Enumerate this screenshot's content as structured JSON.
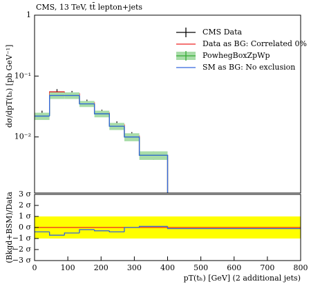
{
  "chart_data": [
    {
      "type": "histogram",
      "title": "CMS, 13 TeV, tt̄ lepton+jets",
      "y_label": "dσ/dpT(tₕ) [pb GeV⁻¹]",
      "bins": [
        0,
        45,
        90,
        135,
        180,
        225,
        270,
        315,
        400,
        800
      ],
      "xlim": [
        0,
        800
      ],
      "ylim": [
        0.0012,
        1
      ],
      "log_y": true,
      "yticks": [
        1,
        {
          "value": 0.1,
          "label": "10⁻¹"
        },
        {
          "value": 0.01,
          "label": "10⁻²"
        }
      ],
      "legend": "upper right",
      "series": [
        {
          "name": "CMS Data",
          "color": "#000000",
          "values": [
            0.024,
            0.055,
            0.052,
            0.037,
            0.025,
            0.016,
            0.0105,
            0.005,
            null
          ],
          "errors": [
            0.003,
            0.006,
            0.005,
            0.004,
            0.003,
            0.002,
            0.0015,
            0.0008,
            null
          ]
        },
        {
          "name": "Data as BG: Correlated 0%",
          "color": "#ee2222",
          "values": [
            0.024,
            0.055,
            0.052,
            0.037,
            0.025,
            0.016,
            0.0105,
            0.005,
            null
          ]
        },
        {
          "name": "PowhegBoxZpWp",
          "color": "#33aa33",
          "band_color": "#a8dca8",
          "values": [
            0.022,
            0.048,
            0.048,
            0.035,
            0.024,
            0.015,
            0.01,
            0.005,
            null
          ],
          "band_errors": [
            0.003,
            0.006,
            0.006,
            0.004,
            0.003,
            0.002,
            0.0015,
            0.0008,
            null
          ]
        },
        {
          "name": "SM as BG: No exclusion",
          "color": "#3366dd",
          "values": [
            0.022,
            0.048,
            0.048,
            0.035,
            0.024,
            0.015,
            0.01,
            0.005,
            null
          ]
        }
      ]
    },
    {
      "type": "histogram",
      "y_label": "(Bkgd+BSM)/Data",
      "x_label": "pT(tₕ) [GeV] (2 additional jets)",
      "bins": [
        0,
        45,
        90,
        135,
        180,
        225,
        270,
        315,
        400,
        800
      ],
      "xlim": [
        0,
        800
      ],
      "ylim": [
        -3,
        3
      ],
      "xticks": [
        0,
        100,
        200,
        300,
        400,
        500,
        600,
        700,
        800
      ],
      "yticks": [
        {
          "value": -3,
          "label": "−3 σ"
        },
        {
          "value": -2,
          "label": "−2 σ"
        },
        {
          "value": -1,
          "label": "−1 σ"
        },
        {
          "value": 0,
          "label": "0 σ"
        },
        {
          "value": 1,
          "label": "1 σ"
        },
        {
          "value": 2,
          "label": "2 σ"
        },
        {
          "value": 3,
          "label": "3 σ"
        }
      ],
      "band": [
        -1,
        1
      ],
      "band_color": "#ffff00",
      "reference": 0,
      "reference_color": "#ee2222",
      "series": [
        {
          "color": "#3366dd",
          "values": [
            -0.4,
            -0.7,
            -0.5,
            -0.2,
            -0.3,
            -0.4,
            0.0,
            0.1,
            -0.1
          ]
        }
      ]
    }
  ]
}
